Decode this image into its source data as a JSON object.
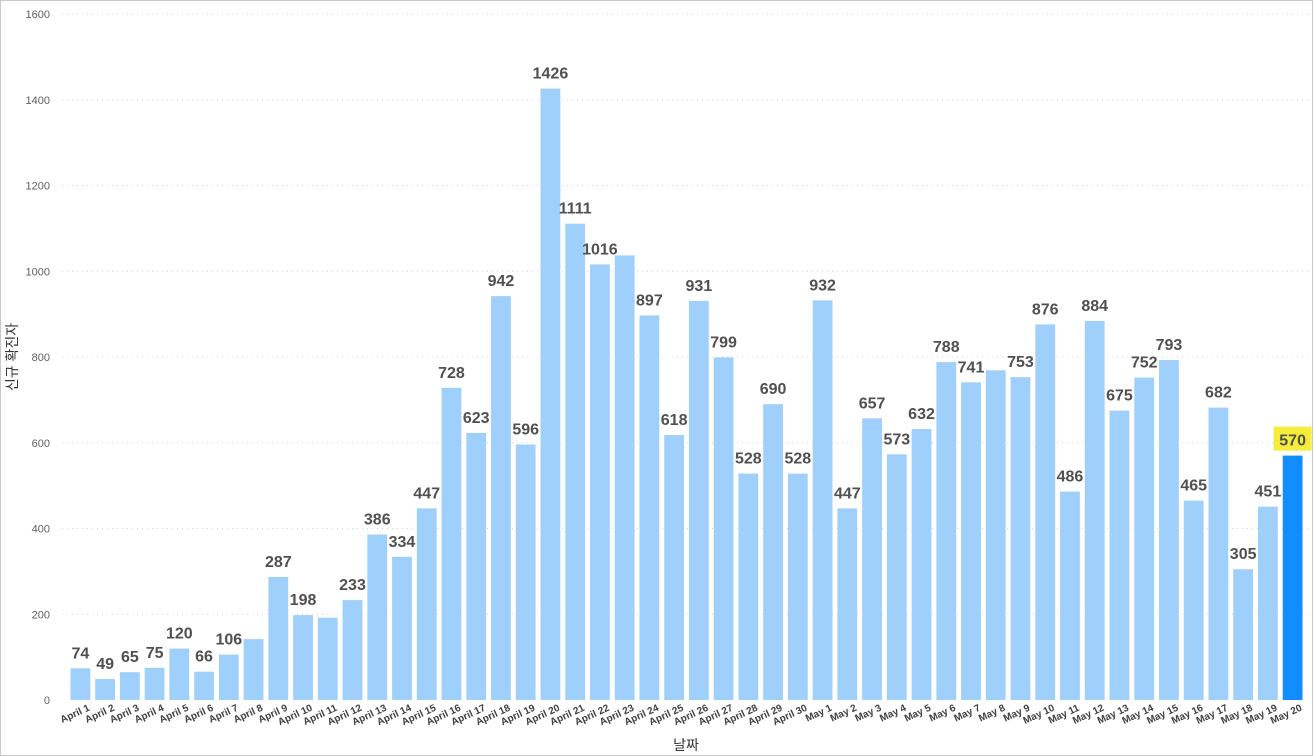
{
  "chart_data": {
    "type": "bar",
    "xlabel": "날짜",
    "ylabel": "신규 확진자",
    "ylim": [
      0,
      1600
    ],
    "yticks": [
      0,
      200,
      400,
      600,
      800,
      1000,
      1200,
      1400,
      1600
    ],
    "grid": true,
    "categories": [
      "April 1",
      "April 2",
      "April 3",
      "April 4",
      "April 5",
      "April 6",
      "April 7",
      "April 8",
      "April 9",
      "April 10",
      "April 11",
      "April 12",
      "April 13",
      "April 14",
      "April 15",
      "April 16",
      "April 17",
      "April 18",
      "April 19",
      "April 20",
      "April 21",
      "April 22",
      "April 23",
      "April 24",
      "April 25",
      "April 26",
      "April 27",
      "April 28",
      "April 29",
      "April 30",
      "May 1",
      "May 2",
      "May 3",
      "May 4",
      "May 5",
      "May 6",
      "May 7",
      "May 8",
      "May 9",
      "May 10",
      "May 11",
      "May 12",
      "May 13",
      "May 14",
      "May 15",
      "May 16",
      "May 17",
      "May 18",
      "May 19",
      "May 20"
    ],
    "values": [
      74,
      49,
      65,
      75,
      120,
      66,
      106,
      142,
      287,
      198,
      192,
      233,
      386,
      334,
      447,
      728,
      623,
      942,
      596,
      1426,
      1111,
      1016,
      1037,
      897,
      618,
      931,
      799,
      528,
      690,
      528,
      932,
      447,
      657,
      573,
      632,
      788,
      741,
      769,
      753,
      876,
      486,
      884,
      675,
      752,
      793,
      465,
      682,
      305,
      451,
      570
    ],
    "labels": [
      "74",
      "49",
      "65",
      "75",
      "120",
      "66",
      "106",
      "",
      "287",
      "198",
      "",
      "233",
      "386",
      "334",
      "447",
      "728",
      "623",
      "942",
      "596",
      "1426",
      "1111",
      "1016",
      "",
      "897",
      "618",
      "931",
      "799",
      "528",
      "690",
      "528",
      "932",
      "447",
      "657",
      "573",
      "632",
      "788",
      "741",
      "",
      "753",
      "876",
      "486",
      "884",
      "675",
      "752",
      "793",
      "465",
      "682",
      "305",
      "451",
      "570"
    ],
    "highlight_index": 49,
    "colors": {
      "bar": "#9fd0fb",
      "highlight": "#118dff",
      "highlight_label_bg": "#f5ec3b",
      "grid": "#d4d4d4"
    }
  }
}
